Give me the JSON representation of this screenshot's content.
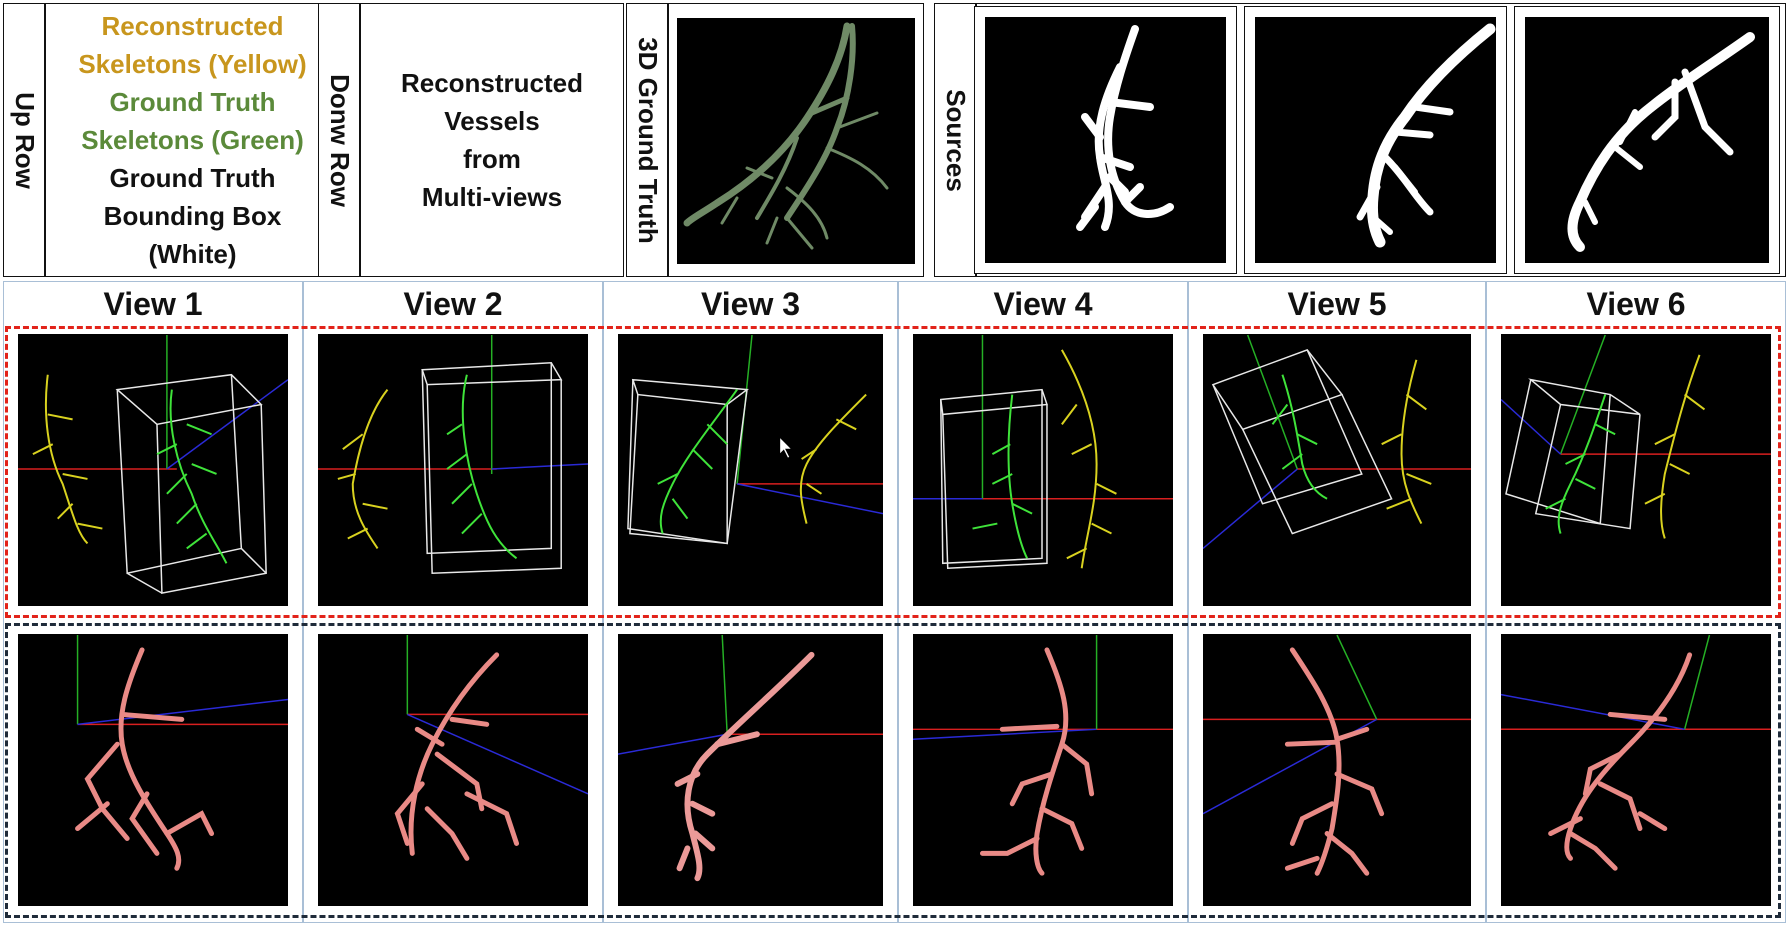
{
  "header": {
    "up_row_label": "Up Row",
    "legend": {
      "line1": "Reconstructed",
      "line2": "Skeletons (Yellow)",
      "line3": "Ground Truth",
      "line4": "Skeletons (Green)",
      "line5": "Ground Truth",
      "line6": "Bounding Box",
      "line7": "(White)"
    },
    "down_row_label": "Donw Row",
    "down_row_desc": {
      "line1": "Reconstructed",
      "line2": "Vessels",
      "line3": "from",
      "line4": "Multi-views"
    },
    "gt3d_label": "3D Ground Truth",
    "sources_label": "Sources"
  },
  "views": [
    {
      "title": "View 1"
    },
    {
      "title": "View 2"
    },
    {
      "title": "View 3"
    },
    {
      "title": "View 4"
    },
    {
      "title": "View 5"
    },
    {
      "title": "View 6"
    }
  ],
  "colors": {
    "yellow_skeleton": "#d9d21f",
    "green_skeleton": "#3fe33a",
    "bounding_box": "#e8e8e8",
    "vessel": "#e98a86",
    "gt_vessel": "#6f8a66",
    "axis_red": "#d81f1f",
    "axis_green": "#25b025",
    "axis_blue": "#2a2ad6",
    "top_dash": "#e2231a",
    "bottom_dash": "#1f2b3a"
  }
}
